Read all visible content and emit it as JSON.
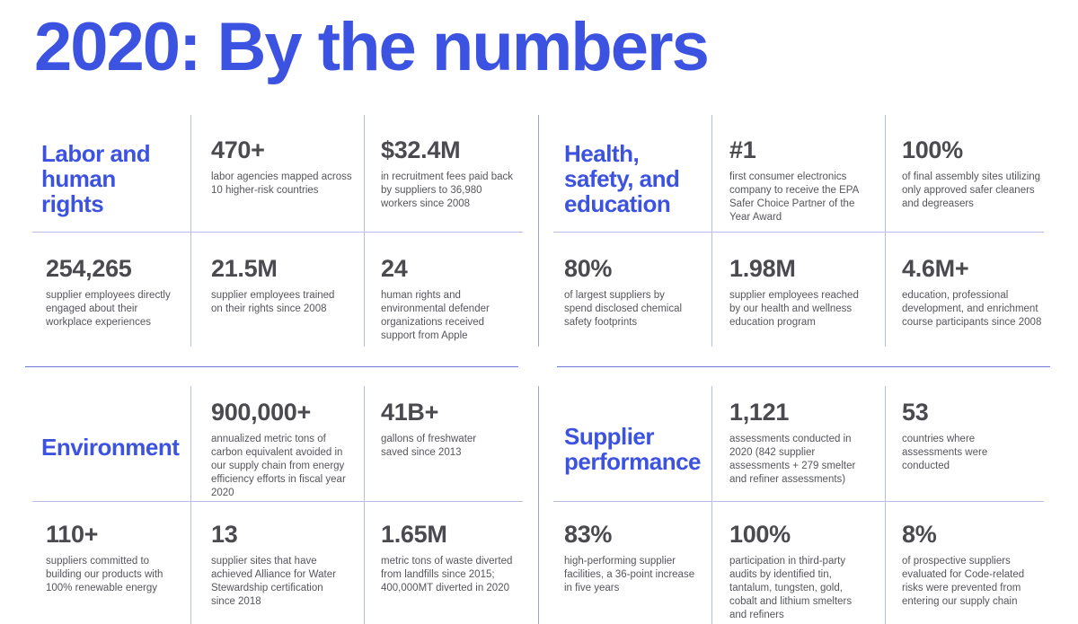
{
  "page_title": "2020: By the numbers",
  "sections": {
    "labor": {
      "title": "Labor and human rights",
      "stats": [
        {
          "value": "470+",
          "desc": "labor agencies mapped across 10 higher-risk countries"
        },
        {
          "value": "$32.4M",
          "desc": "in recruitment fees paid back by suppliers to 36,980 workers since 2008"
        },
        {
          "value": "254,265",
          "desc": "supplier employees directly engaged about their workplace experiences"
        },
        {
          "value": "21.5M",
          "desc": "supplier employees trained on their rights since 2008"
        },
        {
          "value": "24",
          "desc": "human rights and environmental defender organizations received support from Apple"
        }
      ]
    },
    "health": {
      "title": "Health, safety, and education",
      "stats": [
        {
          "value": "#1",
          "desc": "first consumer electronics company to receive the EPA Safer Choice Partner of the Year Award"
        },
        {
          "value": "100%",
          "desc": "of final assembly sites utilizing only approved safer cleaners and degreasers"
        },
        {
          "value": "80%",
          "desc": "of largest suppliers by spend disclosed chemical safety footprints"
        },
        {
          "value": "1.98M",
          "desc": "supplier employees reached by our health and wellness education program"
        },
        {
          "value": "4.6M+",
          "desc": "education, professional development, and enrichment course participants since 2008"
        }
      ]
    },
    "environment": {
      "title": "Environment",
      "stats": [
        {
          "value": "900,000+",
          "desc": "annualized metric tons of carbon equivalent avoided in our supply chain from energy efficiency efforts in fiscal year 2020"
        },
        {
          "value": "41B+",
          "desc": "gallons of freshwater saved since 2013"
        },
        {
          "value": "110+",
          "desc": "suppliers committed to building our products with 100% renewable energy"
        },
        {
          "value": "13",
          "desc": "supplier sites that have achieved Alliance for Water Stewardship certification since 2018"
        },
        {
          "value": "1.65M",
          "desc": "metric tons of waste diverted from landfills since 2015; 400,000MT diverted in 2020"
        }
      ]
    },
    "supplier": {
      "title": "Supplier performance",
      "stats": [
        {
          "value": "1,121",
          "desc": "assessments conducted in 2020 (842 supplier assessments + 279 smelter and refiner assessments)"
        },
        {
          "value": "53",
          "desc": "countries where assessments were conducted"
        },
        {
          "value": "83%",
          "desc": "high-performing supplier facilities, a 36-point increase in five years"
        },
        {
          "value": "100%",
          "desc": "participation in third-party audits by identified tin, tantalum, tungsten, gold, cobalt and lithium smelters and refiners"
        },
        {
          "value": "8%",
          "desc": "of prospective suppliers evaluated for Code-related risks were prevented from entering our supply chain"
        }
      ]
    }
  },
  "colors": {
    "accent": "#3c52e0",
    "value_text": "#4a4a4f",
    "desc_text": "#55565b",
    "divider": "#b8bde6"
  }
}
